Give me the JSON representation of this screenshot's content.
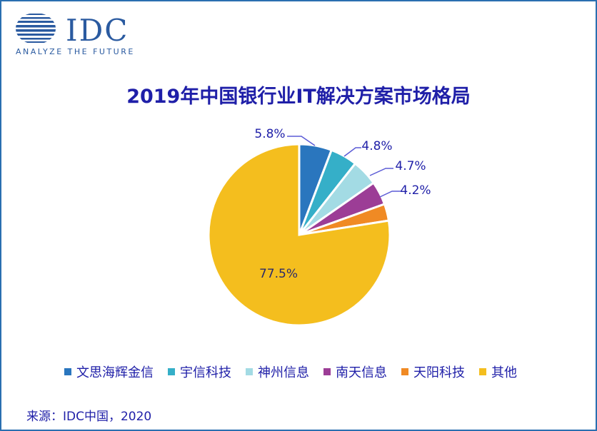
{
  "logo": {
    "name": "IDC",
    "tagline": "ANALYZE THE FUTURE"
  },
  "colors": {
    "frame": "#2a6fb0",
    "text": "#1f1fa8",
    "leader": "#5b5bd6"
  },
  "chart_data": {
    "type": "pie",
    "title": "2019年中国银行业IT解决方案市场格局",
    "categories": [
      "文思海辉金信",
      "宇信科技",
      "神州信息",
      "南天信息",
      "天阳科技",
      "其他"
    ],
    "values": [
      5.8,
      4.8,
      4.7,
      4.2,
      3.0,
      77.5
    ],
    "data_labels": [
      "5.8%",
      "4.8%",
      "4.7%",
      "4.2%",
      "",
      "77.5%"
    ],
    "colors": [
      "#2a76be",
      "#35afc8",
      "#a3dbe4",
      "#9c3d96",
      "#f08a24",
      "#f4be1e"
    ],
    "legend_position": "bottom"
  },
  "source": "来源：IDC中国，2020"
}
